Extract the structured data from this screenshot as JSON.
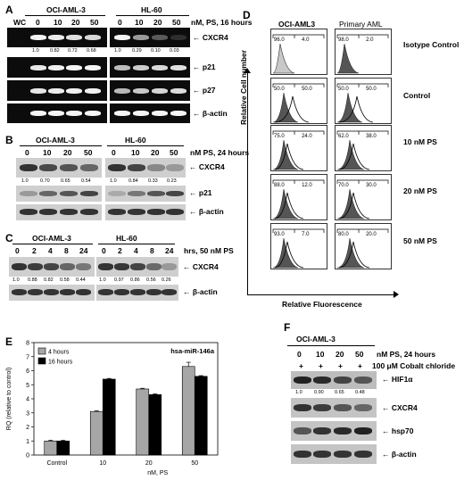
{
  "panels": {
    "A": {
      "label": "A",
      "cell_lines": [
        "OCI-AML-3",
        "HL-60"
      ],
      "lanes_left": [
        "WC",
        "0",
        "10",
        "20",
        "50"
      ],
      "lanes_right": [
        "0",
        "10",
        "20",
        "50"
      ],
      "condition": "nM, PS, 16 hours",
      "rows": [
        "CXCR4",
        "p21",
        "p27",
        "β-actin"
      ],
      "cxcr4_quant_left": [
        "1.0",
        "0.82",
        "0.72",
        "0.68"
      ],
      "cxcr4_quant_right": [
        "1.0",
        "0.29",
        "0.10",
        "0.03"
      ]
    },
    "B": {
      "label": "B",
      "cell_lines": [
        "OCI-AML-3",
        "HL-60"
      ],
      "lanes": [
        "0",
        "10",
        "20",
        "50"
      ],
      "condition": "nM PS, 24 hours",
      "rows": [
        "CXCR4",
        "p21",
        "β-actin"
      ],
      "cxcr4_quant_left": [
        "1.0",
        "0.70",
        "0.65",
        "0.54"
      ],
      "cxcr4_quant_right": [
        "1.0",
        "0.84",
        "0.33",
        "0.23"
      ]
    },
    "C": {
      "label": "C",
      "cell_lines": [
        "OCI-AML-3",
        "HL-60"
      ],
      "lanes": [
        "0",
        "2",
        "4",
        "8",
        "24"
      ],
      "condition": "hrs, 50 nM PS",
      "rows": [
        "CXCR4",
        "β-actin"
      ],
      "cxcr4_quant_left": [
        "1.0",
        "0.88",
        "0.82",
        "0.58",
        "0.44"
      ],
      "cxcr4_quant_right": [
        "1.0",
        "0.97",
        "0.86",
        "0.56",
        "0.26"
      ]
    },
    "D": {
      "label": "D",
      "columns": [
        "OCI-AML3",
        "Primary AML"
      ],
      "row_labels": [
        "Isotype Control",
        "Control",
        "10 nM PS",
        "20 nM PS",
        "50 nM PS"
      ],
      "left_values": [
        [
          "96.0",
          "4.0"
        ],
        [
          "50.0",
          "50.0"
        ],
        [
          "75.0",
          "24.0"
        ],
        [
          "88.0",
          "12.0"
        ],
        [
          "93.0",
          "7.0"
        ]
      ],
      "right_values": [
        [
          "98.0",
          "2.0"
        ],
        [
          "50.0",
          "50.0"
        ],
        [
          "62.0",
          "38.0"
        ],
        [
          "70.0",
          "30.0"
        ],
        [
          "80.0",
          "20.0"
        ]
      ],
      "ylabel": "Relative Cell number",
      "xlabel": "Relative Fluorescence"
    },
    "E": {
      "label": "E",
      "annotation": "hsa-miR-146a",
      "legend": [
        "4 hours",
        "16 hours"
      ]
    },
    "F": {
      "label": "F",
      "cell_line": "OCI-AML-3",
      "lanes": [
        "0",
        "10",
        "20",
        "50"
      ],
      "condition": "nM PS, 24 hours",
      "cobalt_signs": [
        "+",
        "+",
        "+",
        "+"
      ],
      "cobalt_label": "100 μM Cobalt chloride",
      "rows": [
        "HIF1α",
        "CXCR4",
        "hsp70",
        "β-actin"
      ],
      "hif_quant": [
        "1.0",
        "0.90",
        "0.65",
        "0.48"
      ]
    }
  },
  "chart_data": {
    "type": "bar",
    "title": "",
    "categories": [
      "Control",
      "10",
      "20",
      "50"
    ],
    "series": [
      {
        "name": "4 hours",
        "values": [
          1.0,
          3.1,
          4.7,
          6.3
        ],
        "errors": [
          0.05,
          0.05,
          0.05,
          0.3
        ]
      },
      {
        "name": "16 hours",
        "values": [
          1.0,
          5.4,
          4.3,
          5.6
        ],
        "errors": [
          0.05,
          0.05,
          0.05,
          0.05
        ]
      }
    ],
    "xlabel": "nM, PS",
    "ylabel": "RQ (relative to control)",
    "ylim": [
      0,
      8
    ],
    "yticks": [
      0,
      1,
      2,
      3,
      4,
      5,
      6,
      7,
      8
    ],
    "legend_position": "top-left",
    "colors": {
      "4 hours": "#a6a6a6",
      "16 hours": "#000000"
    }
  }
}
